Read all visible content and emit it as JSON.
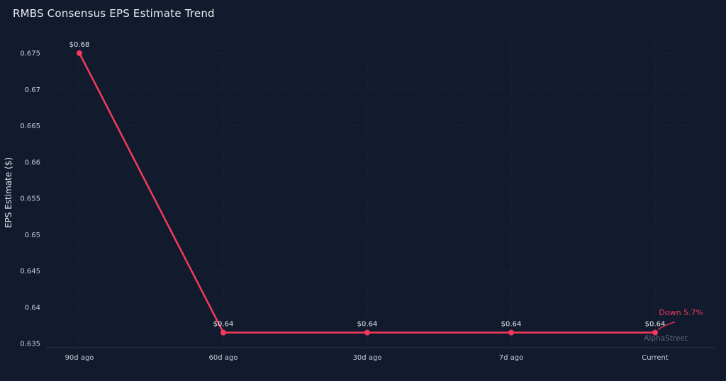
{
  "chart": {
    "title": "RMBS Consensus EPS Estimate Trend",
    "ylabel": "EPS Estimate ($)",
    "annotation": "Down 5.7%",
    "watermark": "AlphaStreet"
  },
  "chart_data": {
    "type": "line",
    "title": "RMBS Consensus EPS Estimate Trend",
    "xlabel": "",
    "ylabel": "EPS Estimate ($)",
    "categories": [
      "90d ago",
      "60d ago",
      "30d ago",
      "7d ago",
      "Current"
    ],
    "values": [
      0.675,
      0.6365,
      0.6365,
      0.6365,
      0.6365
    ],
    "point_labels": [
      "$0.68",
      "$0.64",
      "$0.64",
      "$0.64",
      "$0.64"
    ],
    "ylim": [
      0.635,
      0.675
    ],
    "yticks": [
      0.675,
      0.67,
      0.665,
      0.66,
      0.655,
      0.65,
      0.645,
      0.64,
      0.635
    ],
    "grid": true,
    "legend": "none",
    "annotation": {
      "text": "Down 5.7%",
      "target": "Current"
    },
    "colors": {
      "line": "#f43a5c",
      "background": "#121a2e",
      "gridline": "#232e4b",
      "axis_line": "#2c3757",
      "tick_label": "#c6ccd8",
      "point_label": "#e3e7ee",
      "annotation": "#f43a5c",
      "watermark": "#5e6778",
      "title": "#e9ecf2"
    }
  }
}
